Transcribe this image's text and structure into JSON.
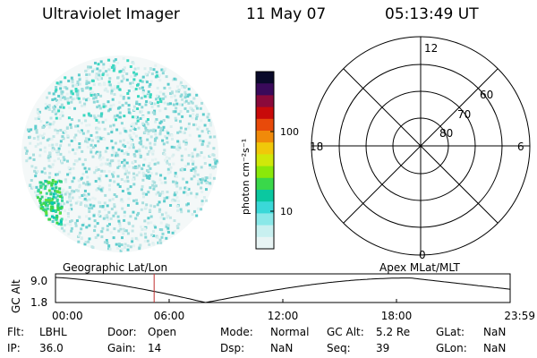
{
  "header": {
    "title": "Ultraviolet Imager",
    "date": "11 May 07",
    "time": "05:13:49 UT"
  },
  "colorbar": {
    "label": "photon cm⁻²s⁻¹",
    "ticks": [
      "100",
      "10"
    ],
    "colors": [
      "#0a0a2a",
      "#3a0a5a",
      "#8a0a3a",
      "#c80a0a",
      "#e84a0a",
      "#f08a0a",
      "#f0c80a",
      "#d0e80a",
      "#8ae80a",
      "#3ad84a",
      "#0ac8a0",
      "#3ad8d8",
      "#8ae8e8",
      "#c8f0f0",
      "#e8f4f4"
    ]
  },
  "polar": {
    "mlt_labels": {
      "top": "12",
      "left": "18",
      "right": "6",
      "bottom": "0"
    },
    "lat_labels": [
      "60",
      "70",
      "80"
    ]
  },
  "timeline": {
    "left_labels": {
      "top": "Geographic Lat/Lon",
      "right": "Apex MLat/MLT"
    },
    "yaxis_label": "GC Alt",
    "y_ticks": [
      "9.0",
      "1.8"
    ],
    "x_ticks": [
      "00:00",
      "06:00",
      "12:00",
      "18:00",
      "23:59"
    ],
    "current_time_fraction": 0.217
  },
  "status": {
    "row1": [
      {
        "label": "Flt:",
        "value": "LBHL"
      },
      {
        "label": "Door:",
        "value": "Open"
      },
      {
        "label": "Mode:",
        "value": "Normal"
      },
      {
        "label": "GC Alt:",
        "value": "5.2 Re"
      },
      {
        "label": "GLat:",
        "value": "NaN"
      }
    ],
    "row2": [
      {
        "label": "IP:",
        "value": "36.0"
      },
      {
        "label": "Gain:",
        "value": "14"
      },
      {
        "label": "Dsp:",
        "value": "NaN"
      },
      {
        "label": "Seq:",
        "value": "39"
      },
      {
        "label": "GLon:",
        "value": "NaN"
      }
    ]
  }
}
